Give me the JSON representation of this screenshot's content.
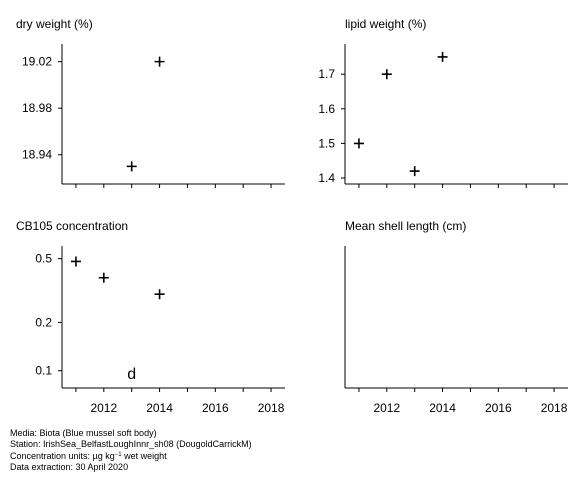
{
  "chart_data": [
    {
      "type": "scatter",
      "title": "dry weight (%)",
      "xlim": [
        2010.5,
        2018.5
      ],
      "ylim": [
        18.92,
        19.03
      ],
      "yscale": "linear",
      "x_ticks": [],
      "y_ticks": [
        "18.94",
        "18.98",
        "19.02"
      ],
      "points": [
        {
          "x": 2013,
          "y": 18.93,
          "marker": "+"
        },
        {
          "x": 2014,
          "y": 19.02,
          "marker": "+"
        }
      ]
    },
    {
      "type": "scatter",
      "title": "lipid weight (%)",
      "xlim": [
        2010.5,
        2018.5
      ],
      "ylim": [
        1.4,
        1.77
      ],
      "yscale": "linear",
      "x_ticks": [],
      "y_ticks": [
        "1.4",
        "1.5",
        "1.6",
        "1.7"
      ],
      "points": [
        {
          "x": 2011,
          "y": 1.5,
          "marker": "+"
        },
        {
          "x": 2012,
          "y": 1.7,
          "marker": "+"
        },
        {
          "x": 2013,
          "y": 1.42,
          "marker": "+"
        },
        {
          "x": 2014,
          "y": 1.75,
          "marker": "+"
        }
      ]
    },
    {
      "type": "scatter",
      "title": "CB105 concentration",
      "xlim": [
        2010.5,
        2018.5
      ],
      "ylim": [
        0.085,
        0.55
      ],
      "yscale": "log",
      "x_ticks": [
        "2012",
        "2014",
        "2016",
        "2018"
      ],
      "y_ticks": [
        "0.1",
        "0.2",
        "0.5"
      ],
      "points": [
        {
          "x": 2011,
          "y": 0.48,
          "marker": "+"
        },
        {
          "x": 2012,
          "y": 0.38,
          "marker": "+"
        },
        {
          "x": 2013,
          "y": 0.097,
          "marker": "d"
        },
        {
          "x": 2014,
          "y": 0.3,
          "marker": "+"
        }
      ]
    },
    {
      "type": "scatter",
      "title": "Mean shell length (cm)",
      "xlim": [
        2010.5,
        2018.5
      ],
      "ylim": [
        0,
        1
      ],
      "yscale": "linear",
      "x_ticks": [
        "2012",
        "2014",
        "2016",
        "2018"
      ],
      "y_ticks": [],
      "points": []
    }
  ],
  "footer": {
    "media": "Media: Biota (Blue mussel soft body)",
    "station": "Station: IrishSea_BelfastLoughInnr_sh08 (DougoldCarrickM)",
    "conc_prefix": "Concentration units:  µg kg",
    "conc_sup": "−1",
    "conc_suffix": " wet weight",
    "extraction": "Data extraction: 30 April 2020"
  }
}
